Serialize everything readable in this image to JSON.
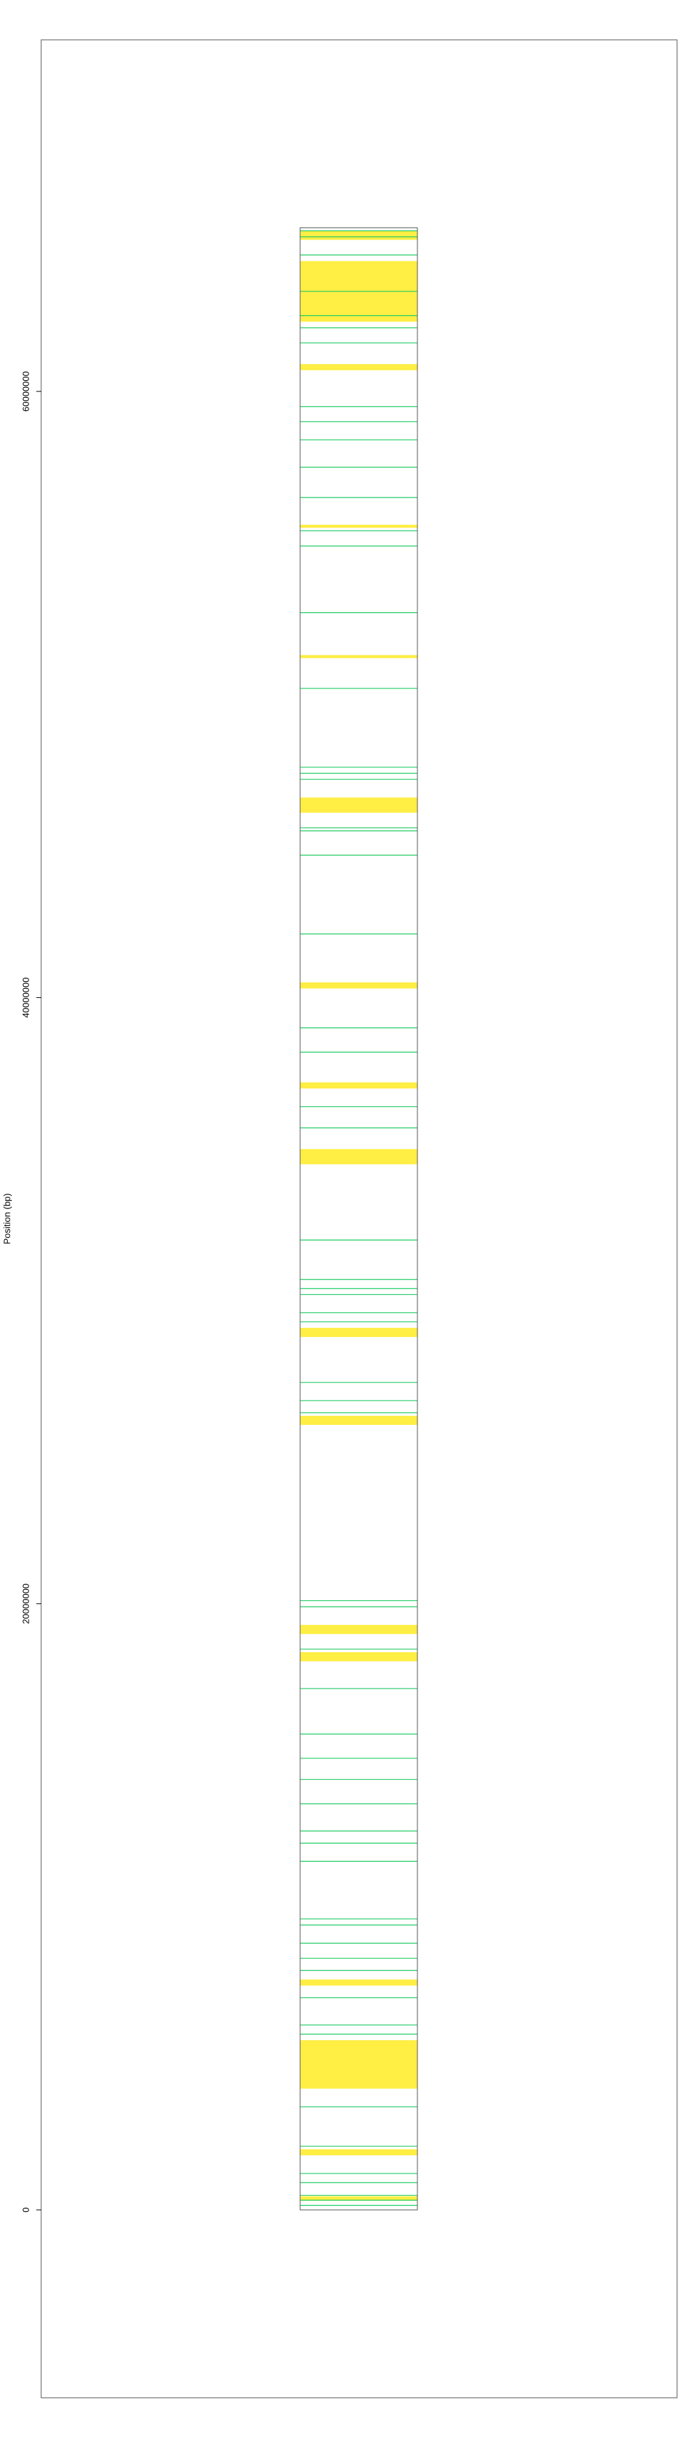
{
  "chart_data": {
    "type": "bar",
    "title": "",
    "xlabel": "",
    "ylabel": "Position (bp)",
    "ylim": [
      -6200000,
      71600000
    ],
    "yticks": [
      0,
      20000000,
      40000000,
      60000000
    ],
    "ytick_labels": [
      "0",
      "20000000",
      "40000000",
      "60000000"
    ],
    "chromosome_range": [
      0,
      65400000
    ],
    "colors": {
      "region": "#ffee44",
      "marker": "#22cc66",
      "outline": "#555555",
      "frame": "#555555"
    },
    "regions": [
      [
        300000,
        450000
      ],
      [
        1800000,
        2000000
      ],
      [
        4000000,
        5600000
      ],
      [
        7400000,
        7600000
      ],
      [
        18100000,
        18400000
      ],
      [
        19000000,
        19300000
      ],
      [
        25900000,
        26200000
      ],
      [
        28800000,
        29100000
      ],
      [
        34500000,
        35000000
      ],
      [
        37000000,
        37200000
      ],
      [
        40300000,
        40500000
      ],
      [
        46100000,
        46600000
      ],
      [
        51200000,
        51300000
      ],
      [
        55500000,
        55600000
      ],
      [
        60700000,
        60900000
      ],
      [
        62300000,
        64300000
      ],
      [
        65000000,
        65300000
      ]
    ],
    "markers": [
      150000,
      320000,
      480000,
      900000,
      1200000,
      2100000,
      3400000,
      5800000,
      6100000,
      7000000,
      7900000,
      8300000,
      8800000,
      9400000,
      9600000,
      11500000,
      12100000,
      12500000,
      13400000,
      14200000,
      14900000,
      15700000,
      17200000,
      18500000,
      19900000,
      20100000,
      26300000,
      26700000,
      27300000,
      29300000,
      29600000,
      30200000,
      30400000,
      30700000,
      32000000,
      35700000,
      36400000,
      38200000,
      39000000,
      42100000,
      44700000,
      45500000,
      45600000,
      47200000,
      47400000,
      47600000,
      50200000,
      52700000,
      54900000,
      55400000,
      56500000,
      57500000,
      58400000,
      59000000,
      59500000,
      61600000,
      62100000,
      62500000,
      63300000,
      64500000,
      65100000,
      65300000
    ]
  }
}
